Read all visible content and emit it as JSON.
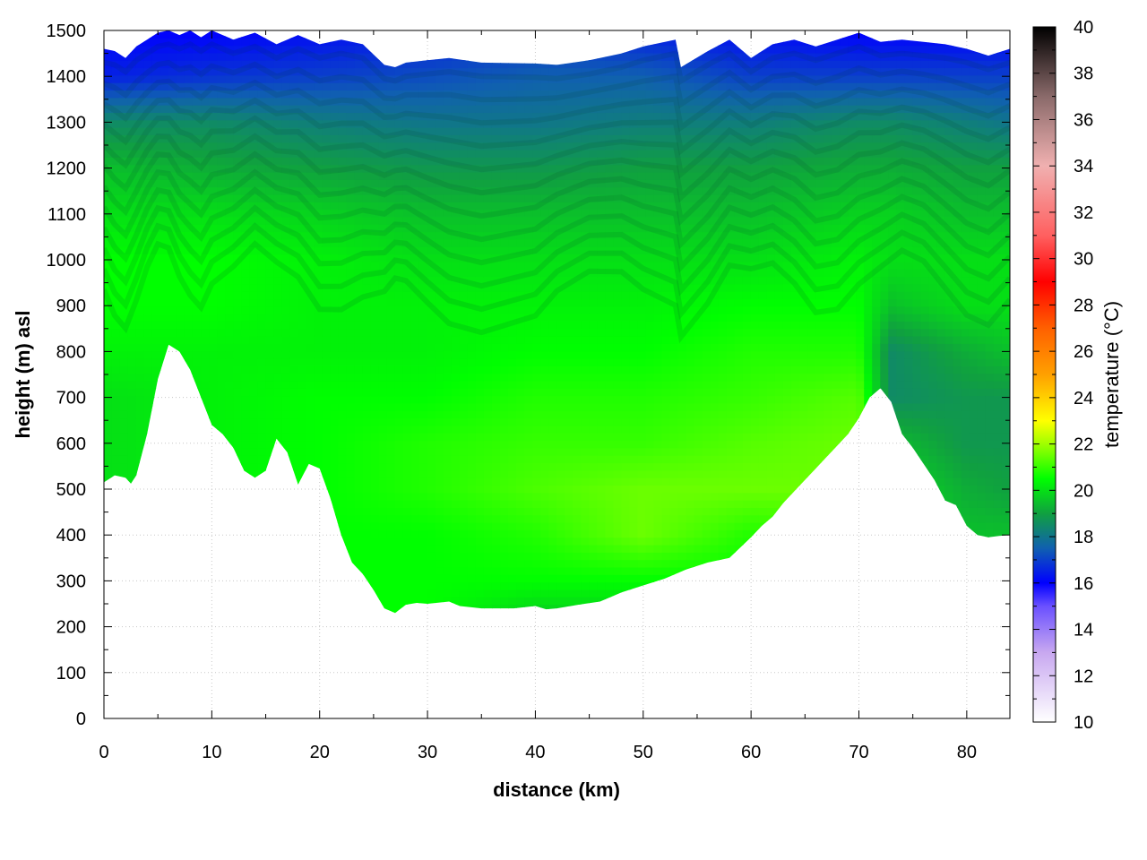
{
  "chart_data": {
    "type": "heatmap",
    "xlabel": "distance (km)",
    "ylabel": "height (m) asl",
    "colorbar_label": "temperature (°C)",
    "xlim": [
      0,
      84
    ],
    "ylim": [
      0,
      1500
    ],
    "x_ticks": [
      0,
      10,
      20,
      30,
      40,
      50,
      60,
      70,
      80
    ],
    "y_ticks": [
      0,
      100,
      200,
      300,
      400,
      500,
      600,
      700,
      800,
      900,
      1000,
      1100,
      1200,
      1300,
      1400,
      1500
    ],
    "colorbar_range": [
      10,
      40
    ],
    "colorbar_ticks": [
      10,
      12,
      14,
      16,
      18,
      20,
      22,
      24,
      26,
      28,
      30,
      32,
      34,
      36,
      38,
      40
    ],
    "colorbar_stops": [
      {
        "value": 10,
        "color": "#ffffff"
      },
      {
        "value": 13,
        "color": "#c8a8f0"
      },
      {
        "value": 15,
        "color": "#6a50ff"
      },
      {
        "value": 16,
        "color": "#0000ff"
      },
      {
        "value": 17.5,
        "color": "#1060b0"
      },
      {
        "value": 19,
        "color": "#10a040"
      },
      {
        "value": 20.5,
        "color": "#00ff00"
      },
      {
        "value": 22,
        "color": "#a0ff00"
      },
      {
        "value": 23,
        "color": "#ffff00"
      },
      {
        "value": 25,
        "color": "#ffa000"
      },
      {
        "value": 27,
        "color": "#ff6000"
      },
      {
        "value": 29,
        "color": "#ff0000"
      },
      {
        "value": 31,
        "color": "#ff6060"
      },
      {
        "value": 34,
        "color": "#f0b0b0"
      },
      {
        "value": 37,
        "color": "#8a6a6a"
      },
      {
        "value": 40,
        "color": "#000000"
      }
    ],
    "grid": true,
    "terrain": {
      "x": [
        0,
        1,
        2,
        2.5,
        3,
        4,
        5,
        6,
        7,
        8,
        9,
        10,
        11,
        12,
        13,
        14,
        15,
        16,
        17,
        18,
        19,
        20,
        21,
        22,
        23,
        24,
        25,
        26,
        27,
        28,
        29,
        30,
        32,
        33,
        35,
        38,
        40,
        41,
        42,
        44,
        46,
        48,
        50,
        52,
        54,
        56,
        58,
        60,
        61,
        62,
        63,
        64,
        65,
        66,
        67,
        68,
        69,
        70,
        71,
        72,
        73,
        74,
        75,
        76,
        77,
        78,
        79,
        80,
        81,
        82,
        83,
        84
      ],
      "height": [
        515,
        530,
        525,
        512,
        530,
        620,
        740,
        815,
        800,
        760,
        700,
        640,
        620,
        590,
        540,
        525,
        540,
        610,
        580,
        510,
        555,
        545,
        480,
        400,
        340,
        315,
        280,
        240,
        230,
        248,
        252,
        250,
        255,
        245,
        240,
        240,
        245,
        238,
        240,
        248,
        255,
        275,
        290,
        305,
        325,
        340,
        350,
        395,
        420,
        440,
        470,
        495,
        520,
        545,
        570,
        595,
        620,
        655,
        700,
        720,
        690,
        620,
        590,
        555,
        520,
        475,
        465,
        420,
        400,
        395,
        398,
        400
      ]
    },
    "top_edge": {
      "x": [
        0,
        1,
        2,
        3,
        4,
        5,
        6,
        7,
        8,
        9,
        10,
        12,
        14,
        16,
        18,
        20,
        22,
        24,
        26,
        27,
        28,
        30,
        32,
        35,
        40,
        42,
        45,
        48,
        50,
        53,
        53.5,
        56,
        58,
        60,
        62,
        64,
        66,
        68,
        70,
        72,
        74,
        76,
        78,
        80,
        82,
        84
      ],
      "height": [
        1460,
        1455,
        1440,
        1465,
        1480,
        1495,
        1500,
        1490,
        1500,
        1485,
        1500,
        1480,
        1495,
        1470,
        1490,
        1470,
        1480,
        1470,
        1425,
        1420,
        1430,
        1435,
        1440,
        1430,
        1428,
        1425,
        1435,
        1450,
        1465,
        1480,
        1420,
        1455,
        1480,
        1440,
        1470,
        1480,
        1465,
        1480,
        1495,
        1475,
        1480,
        1475,
        1470,
        1460,
        1445,
        1460
      ]
    },
    "temperature_field": {
      "x": [
        0,
        10,
        20,
        30,
        40,
        50,
        60,
        70,
        73,
        80,
        84
      ],
      "height": [
        200,
        300,
        400,
        500,
        600,
        700,
        800,
        900,
        1000,
        1100,
        1200,
        1300,
        1400,
        1500
      ],
      "values": [
        [
          20,
          20,
          20.5,
          20.5,
          19.5,
          19.5,
          20,
          20.5,
          20,
          19.5,
          19.5
        ],
        [
          20,
          20,
          20.5,
          20.5,
          20.5,
          20.5,
          20.5,
          21,
          20.5,
          20,
          19.5
        ],
        [
          20,
          20,
          20.5,
          20.5,
          20.8,
          21.5,
          20.8,
          21,
          20,
          19.5,
          19.5
        ],
        [
          20,
          20.3,
          20.5,
          20.8,
          21.2,
          21.5,
          21.5,
          21.5,
          20,
          19.2,
          19
        ],
        [
          20,
          20.3,
          20.5,
          20.8,
          21,
          21,
          21.3,
          21.5,
          19.5,
          18.8,
          18.8
        ],
        [
          20,
          20.3,
          20.5,
          20.5,
          20.8,
          20.8,
          21,
          21.3,
          18.5,
          18.8,
          18.8
        ],
        [
          20.3,
          20.3,
          20.3,
          20.3,
          20.5,
          20.5,
          20.8,
          20.8,
          18.5,
          19.2,
          19.5
        ],
        [
          20.5,
          20.5,
          20.3,
          20.3,
          20.3,
          20.3,
          20.5,
          20.5,
          19.5,
          20,
          20
        ],
        [
          20.5,
          20.5,
          20.3,
          20,
          20,
          20,
          20,
          20.3,
          20,
          20,
          20
        ],
        [
          20,
          20,
          19.8,
          19.5,
          19.5,
          19.5,
          19.5,
          19.8,
          19.8,
          19.5,
          19.5
        ],
        [
          19.5,
          19.2,
          19,
          18.8,
          18.8,
          19,
          19,
          19.2,
          19.2,
          19,
          19
        ],
        [
          18.5,
          18.5,
          18.2,
          18,
          18,
          18.2,
          18.2,
          18.5,
          18.5,
          18.2,
          18
        ],
        [
          16.5,
          16.8,
          17,
          17.2,
          17.5,
          17.5,
          17,
          17,
          17,
          17,
          17
        ],
        [
          16,
          16,
          16.2,
          16.5,
          16.8,
          16.5,
          16.2,
          16,
          16,
          16,
          16
        ]
      ]
    }
  }
}
